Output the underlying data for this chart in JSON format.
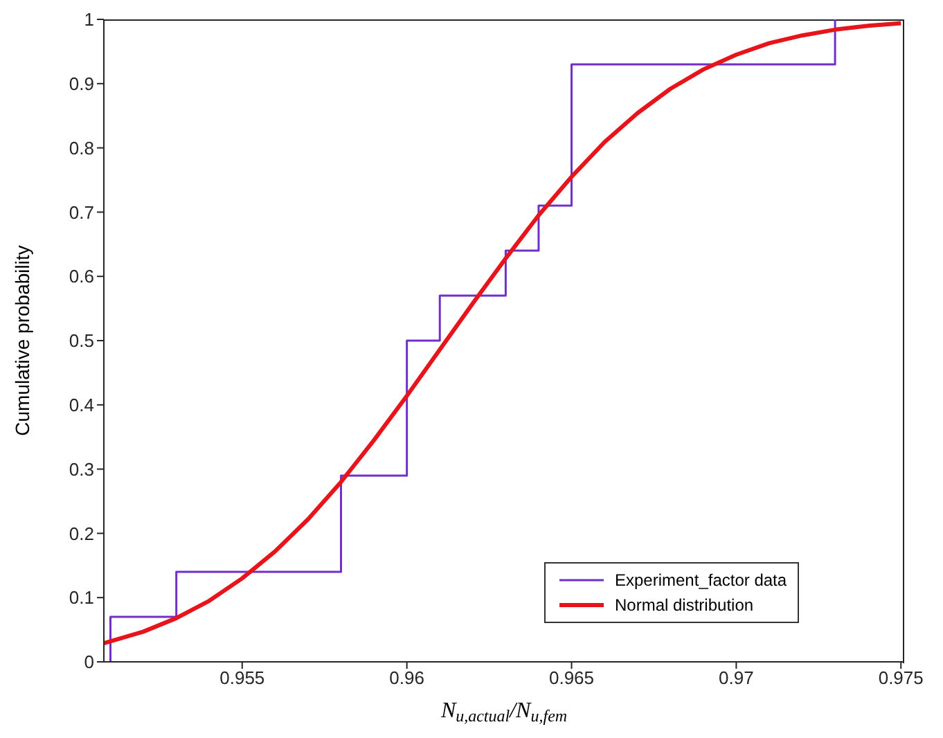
{
  "chart_data": {
    "type": "line",
    "xlabel": "N$_{u,actual}$/N$_{u,fem}$",
    "ylabel": "Cumulative probability",
    "xlim": [
      0.9508,
      0.9751
    ],
    "ylim": [
      0,
      1
    ],
    "xticks": [
      0.955,
      0.96,
      0.965,
      0.97,
      0.975
    ],
    "yticks": [
      0,
      0.1,
      0.2,
      0.3,
      0.4,
      0.5,
      0.6,
      0.7,
      0.8,
      0.9,
      1
    ],
    "grid": false,
    "legend": "bottom right",
    "marker": "none",
    "series": [
      {
        "name": "Experiment_factor data",
        "type": "step",
        "color": "#7030c8",
        "x": [
          0.951,
          0.951,
          0.953,
          0.958,
          0.96,
          0.961,
          0.963,
          0.964,
          0.965,
          0.973
        ],
        "values": [
          0,
          0.07,
          0.14,
          0.29,
          0.5,
          0.57,
          0.64,
          0.71,
          0.93,
          1
        ]
      },
      {
        "name": "Normal distribution",
        "type": "line",
        "color": "#e8141c",
        "x": [
          0.9508,
          0.952,
          0.953,
          0.954,
          0.955,
          0.956,
          0.957,
          0.958,
          0.959,
          0.96,
          0.961,
          0.962,
          0.963,
          0.964,
          0.965,
          0.966,
          0.967,
          0.968,
          0.969,
          0.97,
          0.971,
          0.972,
          0.973,
          0.974,
          0.975
        ],
        "values": [
          0.029,
          0.047,
          0.068,
          0.095,
          0.13,
          0.172,
          0.222,
          0.28,
          0.345,
          0.414,
          0.486,
          0.558,
          0.628,
          0.695,
          0.755,
          0.809,
          0.854,
          0.892,
          0.922,
          0.945,
          0.963,
          0.975,
          0.984,
          0.99,
          0.994
        ]
      }
    ]
  }
}
